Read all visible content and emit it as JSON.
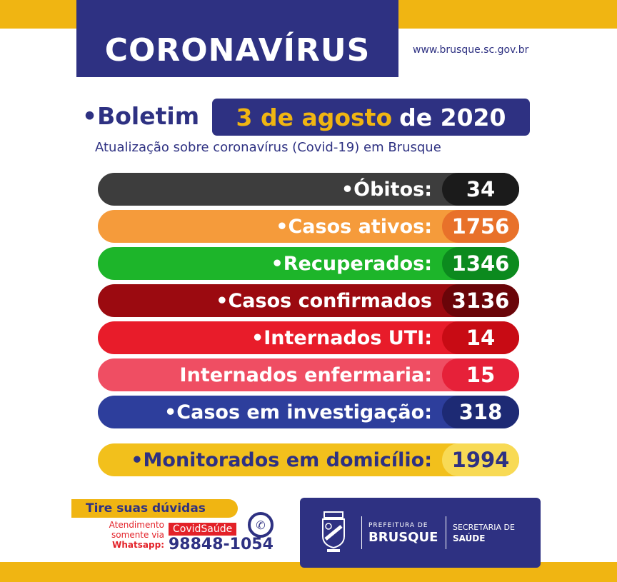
{
  "header": {
    "title": "CORONAVÍRUS",
    "url": "www.brusque.sc.gov.br"
  },
  "bulletin": {
    "prefix": "•Boletim",
    "date_highlight": "3 de agosto",
    "date_rest": "de 2020",
    "subtitle": "Atualização sobre coronavírus (Covid-19) em Brusque"
  },
  "stats": [
    {
      "label": "•Óbitos:",
      "value": "34",
      "color": "#3d3d3d",
      "value_color": "#1b1b1b"
    },
    {
      "label": "•Casos ativos:",
      "value": "1756",
      "color": "#f59b3b",
      "value_color": "#e8712a"
    },
    {
      "label": "•Recuperados:",
      "value": "1346",
      "color": "#1db52a",
      "value_color": "#0c8a1e"
    },
    {
      "label": "•Casos confirmados",
      "value": "3136",
      "color": "#9b0a10",
      "value_color": "#6a0509"
    },
    {
      "label": "•Internados UTI:",
      "value": "14",
      "color": "#e81c2a",
      "value_color": "#c80b14"
    },
    {
      "label": "Internados enfermaria:",
      "value": "15",
      "color": "#ef4e63",
      "value_color": "#e62139"
    },
    {
      "label": "•Casos em investigação:",
      "value": "318",
      "color": "#2d3e9c",
      "value_color": "#1d2a74"
    },
    {
      "label": "•Monitorados em domicílio:",
      "value": "1994",
      "color": "#f2c01c",
      "value_color": "#f8da55"
    }
  ],
  "help": {
    "title": "Tire suas dúvidas",
    "line1": "Atendimento",
    "line2": "somente via",
    "line3": "Whatsapp:",
    "contact_name": "CovidSaúde",
    "phone": "98848-1054",
    "icon": "whatsapp-icon"
  },
  "logo": {
    "line1": "PREFEITURA DE",
    "line2": "BRUSQUE",
    "line3": "SECRETARIA DE",
    "line4": "SAÚDE"
  }
}
